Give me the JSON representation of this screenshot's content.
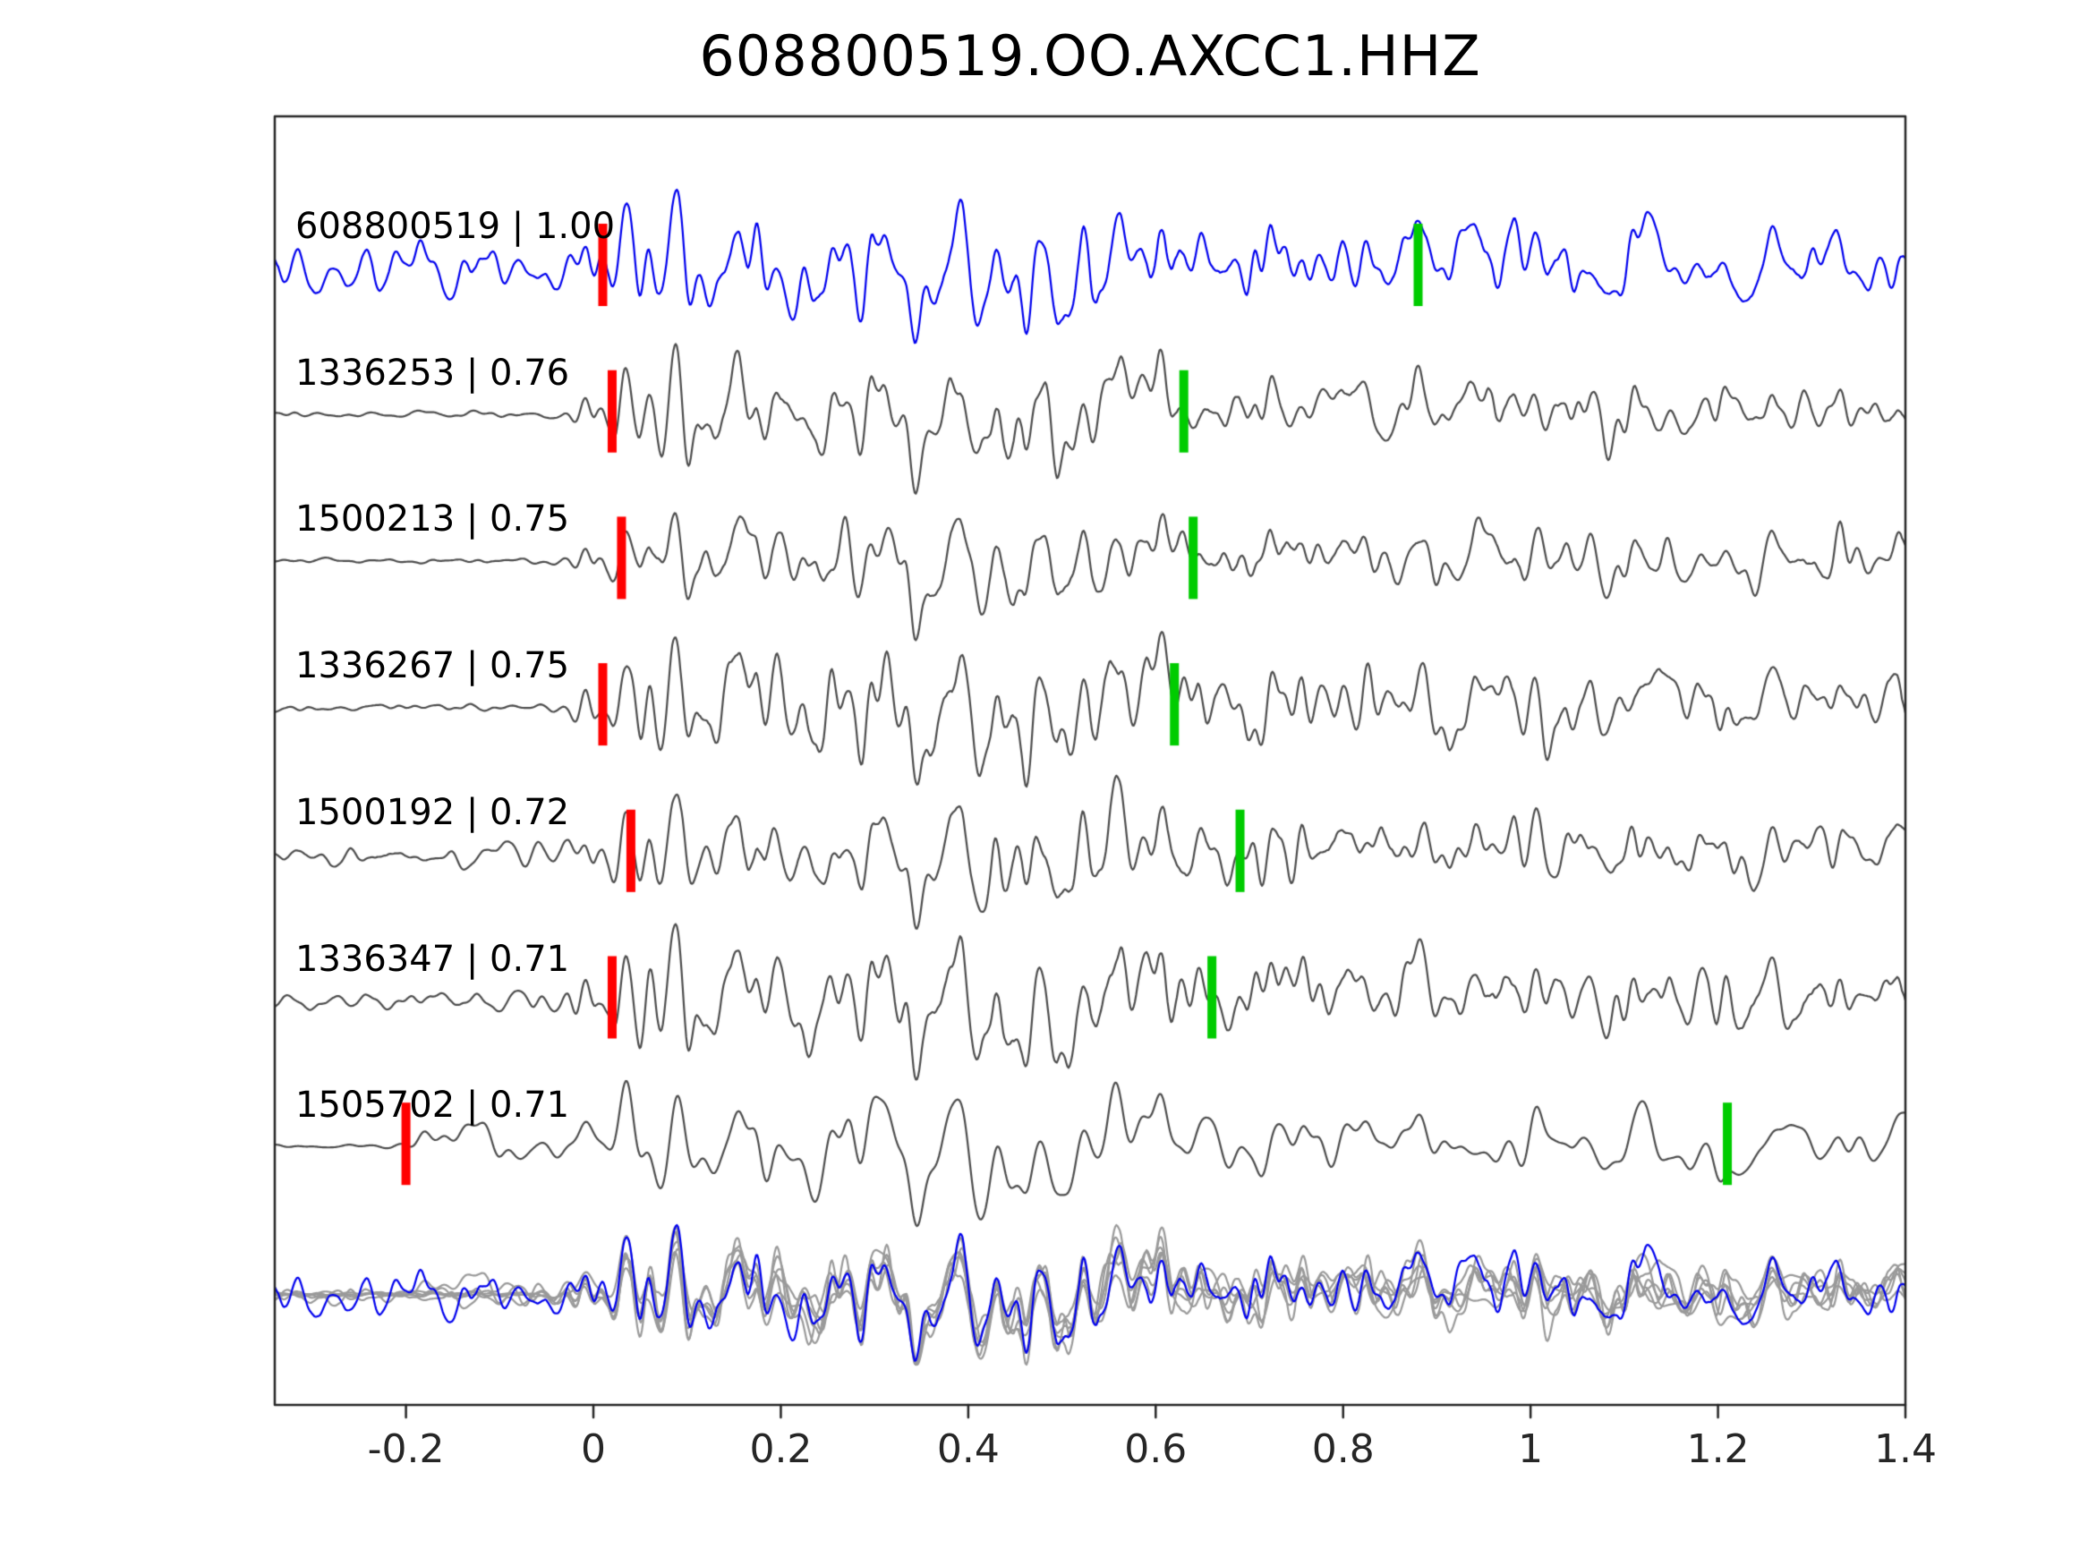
{
  "title": "608800519.OO.AXCC1.HHZ",
  "chart_data": {
    "type": "line",
    "title": "608800519.OO.AXCC1.HHZ",
    "xlabel": "",
    "ylabel": "",
    "x_range": [
      -0.34,
      1.4
    ],
    "x_ticks": [
      -0.2,
      0,
      0.2,
      0.4,
      0.6,
      0.8,
      1,
      1.2,
      1.4
    ],
    "x_tick_labels": [
      "-0.2",
      "0",
      "0.2",
      "0.4",
      "0.6",
      "0.8",
      "1",
      "1.2",
      "1.4"
    ],
    "grid": false,
    "legend": false,
    "traces": [
      {
        "id": "608800519",
        "similarity": "1.00",
        "label": "608800519 | 1.00",
        "role": "reference",
        "red_pick": 0.01,
        "green_pick": 0.88
      },
      {
        "id": "1336253",
        "similarity": "0.76",
        "label": "1336253 | 0.76",
        "role": "template",
        "red_pick": 0.02,
        "green_pick": 0.63
      },
      {
        "id": "1500213",
        "similarity": "0.75",
        "label": "1500213 | 0.75",
        "role": "template",
        "red_pick": 0.03,
        "green_pick": 0.64
      },
      {
        "id": "1336267",
        "similarity": "0.75",
        "label": "1336267 | 0.75",
        "role": "template",
        "red_pick": 0.01,
        "green_pick": 0.62
      },
      {
        "id": "1500192",
        "similarity": "0.72",
        "label": "1500192 | 0.72",
        "role": "template",
        "red_pick": 0.04,
        "green_pick": 0.69
      },
      {
        "id": "1336347",
        "similarity": "0.71",
        "label": "1336347 | 0.71",
        "role": "template",
        "red_pick": 0.02,
        "green_pick": 0.66
      },
      {
        "id": "1505702",
        "similarity": "0.71",
        "label": "1505702 | 0.71",
        "role": "template",
        "red_pick": -0.2,
        "green_pick": 1.21
      }
    ],
    "overlay_row": {
      "present": true,
      "gray_trace_count": 6,
      "blue_reference_on_top": true
    },
    "colors": {
      "reference": "#0000ee",
      "template": "#4d4d4d",
      "overlay_gray": "#9a9a9a",
      "pick_red": "#ff0000",
      "pick_green": "#00cc00",
      "axis": "#262626",
      "background": "#ffffff"
    }
  }
}
